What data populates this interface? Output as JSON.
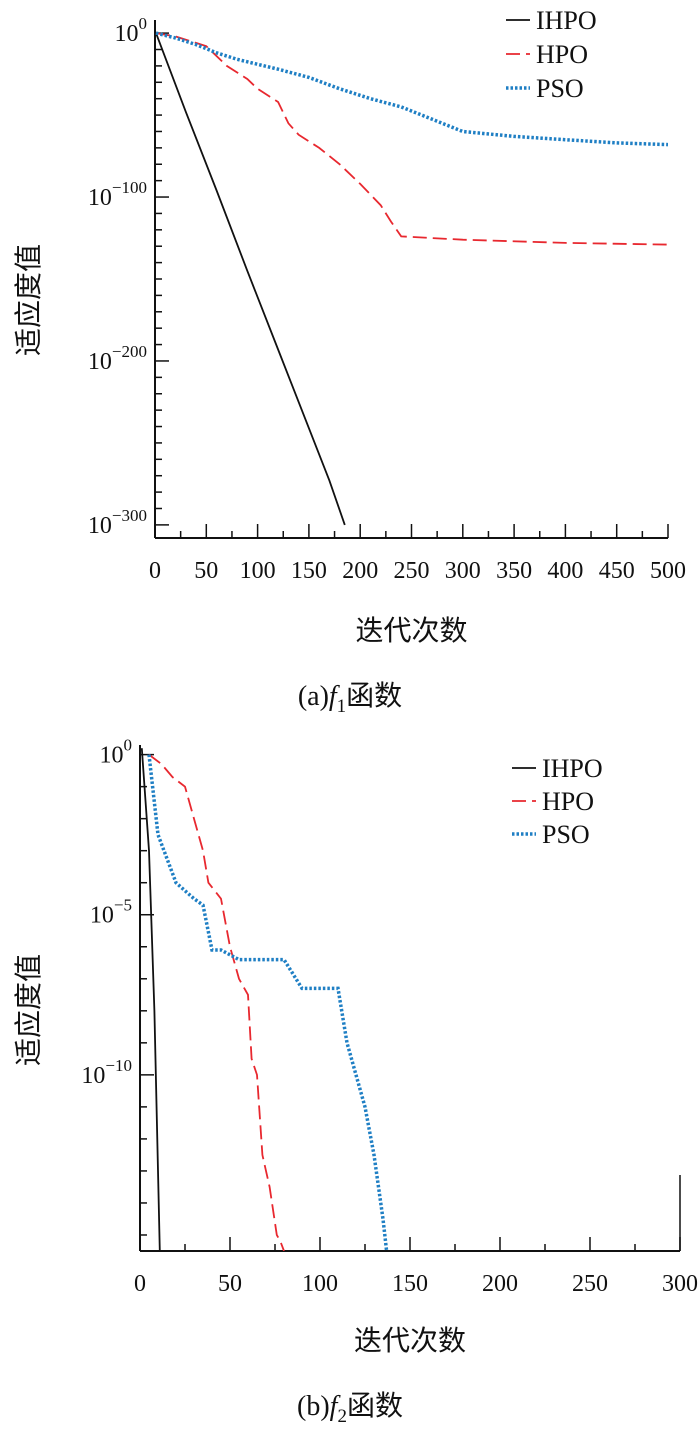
{
  "chart_data": [
    {
      "type": "line",
      "caption": {
        "prefix": "(a)",
        "func": "f",
        "sub": "1",
        "suffix": "函数"
      },
      "xlabel": "迭代次数",
      "ylabel": "适应度值",
      "xlim": [
        0,
        500
      ],
      "xticks": [
        0,
        50,
        100,
        150,
        200,
        250,
        300,
        350,
        400,
        450,
        500
      ],
      "ylim_log10": [
        -308,
        8
      ],
      "yscale": "log",
      "yticks": [
        {
          "base": "10",
          "exp": "0",
          "value": 0
        },
        {
          "base": "10",
          "exp": "−100",
          "value": -100
        },
        {
          "base": "10",
          "exp": "−200",
          "value": -200
        },
        {
          "base": "10",
          "exp": "−300",
          "value": -300
        }
      ],
      "legend": "top-right",
      "series": [
        {
          "name": "IHPO",
          "color": "#111111",
          "style": "solid",
          "x": [
            1,
            30,
            60,
            90,
            120,
            150,
            170,
            185
          ],
          "y_log10": [
            0,
            -48,
            -96,
            -145,
            -193,
            -241,
            -273,
            -300
          ]
        },
        {
          "name": "HPO",
          "color": "#e8282f",
          "style": "dashed",
          "x": [
            1,
            20,
            50,
            70,
            90,
            100,
            120,
            130,
            140,
            160,
            180,
            200,
            220,
            230,
            240,
            300,
            400,
            500
          ],
          "y_log10": [
            0,
            -2,
            -8,
            -20,
            -28,
            -34,
            -42,
            -55,
            -62,
            -70,
            -80,
            -92,
            -105,
            -115,
            -124,
            -126,
            -128,
            -129
          ]
        },
        {
          "name": "PSO",
          "color": "#1f7fc4",
          "style": "dotted",
          "x": [
            1,
            20,
            40,
            60,
            80,
            100,
            120,
            150,
            180,
            210,
            240,
            260,
            280,
            300,
            350,
            400,
            450,
            500
          ],
          "y_log10": [
            0,
            -3,
            -7,
            -12,
            -16,
            -19,
            -22,
            -27,
            -34,
            -40,
            -45,
            -50,
            -55,
            -60,
            -63,
            -65,
            -67,
            -68
          ]
        }
      ]
    },
    {
      "type": "line",
      "caption": {
        "prefix": "(b)",
        "func": "f",
        "sub": "2",
        "suffix": "函数"
      },
      "xlabel": "迭代次数",
      "ylabel": "适应度值",
      "xlim": [
        0,
        300
      ],
      "xticks": [
        0,
        50,
        100,
        150,
        200,
        250,
        300
      ],
      "ylim_log10": [
        -15.5,
        0.3
      ],
      "yscale": "log",
      "yticks": [
        {
          "base": "10",
          "exp": "0",
          "value": 0
        },
        {
          "base": "10",
          "exp": "−5",
          "value": -5
        },
        {
          "base": "10",
          "exp": "−10",
          "value": -10
        }
      ],
      "legend": "top-right",
      "series": [
        {
          "name": "IHPO",
          "color": "#111111",
          "style": "solid",
          "x": [
            1,
            5,
            8,
            10,
            11
          ],
          "y_log10": [
            0.2,
            -3.0,
            -8.0,
            -13.0,
            -15.5
          ]
        },
        {
          "name": "HPO",
          "color": "#e8282f",
          "style": "dashed",
          "x": [
            5,
            12,
            18,
            25,
            30,
            35,
            38,
            45,
            50,
            55,
            60,
            62,
            65,
            68,
            72,
            76,
            78,
            80
          ],
          "y_log10": [
            0,
            -0.3,
            -0.7,
            -1.0,
            -2.0,
            -3.0,
            -4.0,
            -4.5,
            -6.0,
            -7.0,
            -7.5,
            -9.5,
            -10.0,
            -12.5,
            -13.5,
            -15.0,
            -15.2,
            -15.5
          ]
        },
        {
          "name": "PSO",
          "color": "#1f7fc4",
          "style": "dotted",
          "x": [
            5,
            10,
            20,
            30,
            35,
            40,
            45,
            55,
            65,
            80,
            90,
            95,
            110,
            115,
            120,
            125,
            130,
            135,
            137
          ],
          "y_log10": [
            0,
            -2.5,
            -4.0,
            -4.5,
            -4.7,
            -6.1,
            -6.1,
            -6.4,
            -6.4,
            -6.4,
            -7.3,
            -7.3,
            -7.3,
            -9.0,
            -10.0,
            -11.0,
            -12.5,
            -14.5,
            -15.5
          ]
        }
      ]
    }
  ]
}
